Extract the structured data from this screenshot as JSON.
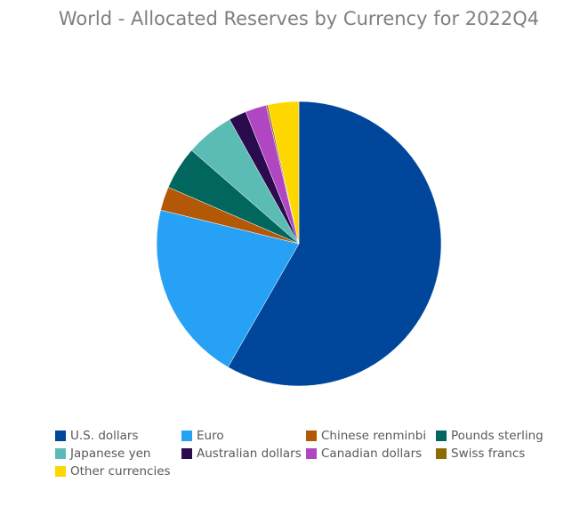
{
  "chart_data": {
    "type": "pie",
    "title": "World - Allocated Reserves by Currency for 2022Q4",
    "categories": [
      "U.S. dollars",
      "Euro",
      "Chinese renminbi",
      "Pounds sterling",
      "Japanese yen",
      "Australian dollars",
      "Canadian dollars",
      "Swiss francs",
      "Other currencies"
    ],
    "values": [
      58.3,
      20.5,
      2.7,
      4.9,
      5.5,
      2.0,
      2.4,
      0.2,
      3.5
    ],
    "colors": [
      "#00469b",
      "#26a1f5",
      "#b35806",
      "#00665e",
      "#5bbcb5",
      "#2a0c4e",
      "#b146c2",
      "#8c6d00",
      "#ffd700"
    ],
    "legend": "bottom"
  }
}
